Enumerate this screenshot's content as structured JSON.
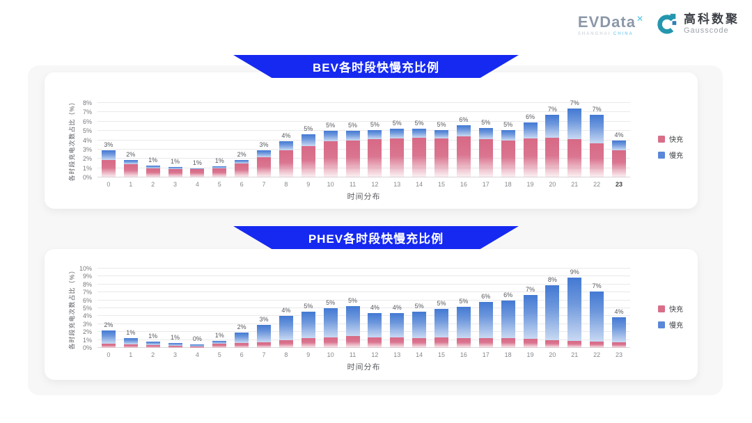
{
  "logo": {
    "evdata_text": "EVData",
    "evdata_sup": "✕",
    "evdata_sub_left": "SHANGHAI ",
    "evdata_sub_right": "CHINA",
    "brand_cn": "高科数聚",
    "brand_en": "Gausscode"
  },
  "colors": {
    "banner_blue": "#1629F0",
    "fast_pink": "#D96E88",
    "slow_blue": "#5B87D9",
    "panel_gray": "#F7F7F8"
  },
  "chart_data": [
    {
      "type": "bar",
      "stacked": true,
      "title": "BEV各时段快慢充比例",
      "xlabel": "时间分布",
      "ylabel": "各时段充电次数占比（%）",
      "ylim": [
        0,
        8
      ],
      "ytick_suffix": "%",
      "grid": true,
      "legend_position": "right",
      "categories": [
        "0",
        "1",
        "2",
        "3",
        "4",
        "5",
        "6",
        "7",
        "8",
        "9",
        "10",
        "11",
        "12",
        "13",
        "14",
        "15",
        "16",
        "17",
        "18",
        "19",
        "20",
        "21",
        "22",
        "23"
      ],
      "bold_tick": "23",
      "series": [
        {
          "name": "快充",
          "color": "#D96E88",
          "values": [
            1.9,
            1.4,
            1.0,
            0.9,
            0.9,
            1.0,
            1.5,
            2.2,
            2.9,
            3.4,
            3.9,
            4.0,
            4.1,
            4.2,
            4.3,
            4.2,
            4.4,
            4.1,
            4.0,
            4.2,
            4.3,
            4.1,
            3.7,
            2.9
          ]
        },
        {
          "name": "慢充",
          "color": "#5B87D9",
          "values": [
            1.0,
            0.5,
            0.3,
            0.25,
            0.1,
            0.2,
            0.4,
            0.7,
            1.0,
            1.2,
            1.1,
            1.0,
            1.0,
            1.0,
            0.9,
            0.9,
            1.2,
            1.2,
            1.1,
            1.7,
            2.4,
            3.3,
            3.0,
            1.1
          ]
        }
      ],
      "total_labels": [
        "3%",
        "2%",
        "1%",
        "1%",
        "1%",
        "1%",
        "2%",
        "3%",
        "4%",
        "5%",
        "5%",
        "5%",
        "5%",
        "5%",
        "5%",
        "5%",
        "6%",
        "5%",
        "5%",
        "6%",
        "7%",
        "7%",
        "7%",
        "4%"
      ]
    },
    {
      "type": "bar",
      "stacked": true,
      "title": "PHEV各时段快慢充比例",
      "xlabel": "时间分布",
      "ylabel": "各时段充电次数占比（%）",
      "ylim": [
        0,
        10
      ],
      "ytick_suffix": "%",
      "grid": true,
      "legend_position": "right",
      "categories": [
        "0",
        "1",
        "2",
        "3",
        "4",
        "5",
        "6",
        "7",
        "8",
        "9",
        "10",
        "11",
        "12",
        "13",
        "14",
        "15",
        "16",
        "17",
        "18",
        "19",
        "20",
        "21",
        "22",
        "23"
      ],
      "bold_tick": "",
      "series": [
        {
          "name": "快充",
          "color": "#D96E88",
          "values": [
            0.5,
            0.45,
            0.35,
            0.3,
            0.2,
            0.5,
            0.6,
            0.7,
            1.0,
            1.2,
            1.3,
            1.5,
            1.3,
            1.3,
            1.2,
            1.3,
            1.2,
            1.2,
            1.2,
            1.1,
            1.0,
            0.9,
            0.8,
            0.7
          ]
        },
        {
          "name": "慢充",
          "color": "#5B87D9",
          "values": [
            1.7,
            0.8,
            0.45,
            0.35,
            0.25,
            0.4,
            1.3,
            2.2,
            3.0,
            3.4,
            3.7,
            3.8,
            3.1,
            3.1,
            3.4,
            3.6,
            4.0,
            4.6,
            4.8,
            5.6,
            6.9,
            8.0,
            6.3,
            3.2
          ]
        }
      ],
      "total_labels": [
        "2%",
        "1%",
        "1%",
        "1%",
        "0%",
        "1%",
        "2%",
        "3%",
        "4%",
        "5%",
        "5%",
        "5%",
        "4%",
        "4%",
        "5%",
        "5%",
        "5%",
        "6%",
        "6%",
        "7%",
        "8%",
        "9%",
        "7%",
        "4%"
      ]
    }
  ]
}
